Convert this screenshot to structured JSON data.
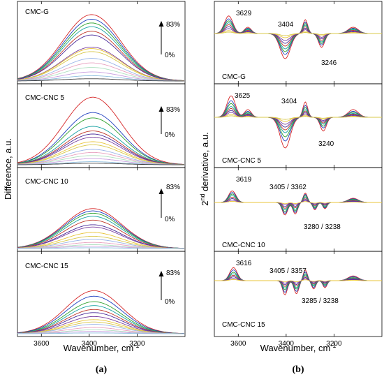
{
  "figure": {
    "caption_a": "(a)",
    "caption_b": "(b)"
  },
  "chart_data": [
    {
      "type": "line",
      "panel": "a",
      "xlabel": "Wavenumber, cm",
      "xlabel_sup": "-1",
      "ylabel": "Difference, a.u.",
      "xlim": [
        3700,
        3000
      ],
      "xticks": [
        3600,
        3400,
        3200
      ],
      "arrow_top": "83%",
      "arrow_bottom": "0%",
      "subplots": [
        {
          "name": "CMC-G",
          "peak": 3390,
          "width": 170,
          "amps": [
            0.88,
            0.82,
            0.77,
            0.72,
            0.66,
            0.61,
            0.45,
            0.43,
            0.39,
            0.3,
            0.24,
            0.18,
            0.12,
            0.07,
            0.03
          ]
        },
        {
          "name": "CMC-CNC 5",
          "peak": 3385,
          "width": 170,
          "amps": [
            0.88,
            0.68,
            0.61,
            0.5,
            0.44,
            0.4,
            0.36,
            0.3,
            0.26,
            0.2,
            0.16,
            0.12,
            0.08,
            0.04,
            0.02
          ]
        },
        {
          "name": "CMC-CNC 10",
          "peak": 3385,
          "width": 170,
          "amps": [
            0.52,
            0.49,
            0.46,
            0.42,
            0.37,
            0.31,
            0.28,
            0.21,
            0.16,
            0.12,
            0.08,
            0.05,
            0.03,
            0.01
          ]
        },
        {
          "name": "CMC-CNC 15",
          "peak": 3380,
          "width": 165,
          "amps": [
            0.55,
            0.48,
            0.41,
            0.36,
            0.31,
            0.27,
            0.22,
            0.18,
            0.15,
            0.12,
            0.08,
            0.05,
            0.03,
            0.01
          ]
        }
      ]
    },
    {
      "type": "line",
      "panel": "b",
      "xlabel": "Wavenumber, cm",
      "xlabel_sup": "-1",
      "ylabel_prefix": "2",
      "ylabel_sup": "nd",
      "ylabel": " derivative, a.u.",
      "xlim": [
        3700,
        3000
      ],
      "xticks": [
        3600,
        3400,
        3200
      ],
      "subplots": [
        {
          "name": "CMC-G",
          "annotations": [
            "3629",
            "3404",
            "3246"
          ]
        },
        {
          "name": "CMC-CNC 5",
          "annotations": [
            "3625",
            "3404",
            "3240"
          ]
        },
        {
          "name": "CMC-CNC 10",
          "annotations": [
            "3619",
            "3405 / 3362",
            "3280 / 3238"
          ]
        },
        {
          "name": "CMC-CNC 15",
          "annotations": [
            "3616",
            "3405 / 3357",
            "3285 / 3238"
          ]
        }
      ]
    }
  ]
}
